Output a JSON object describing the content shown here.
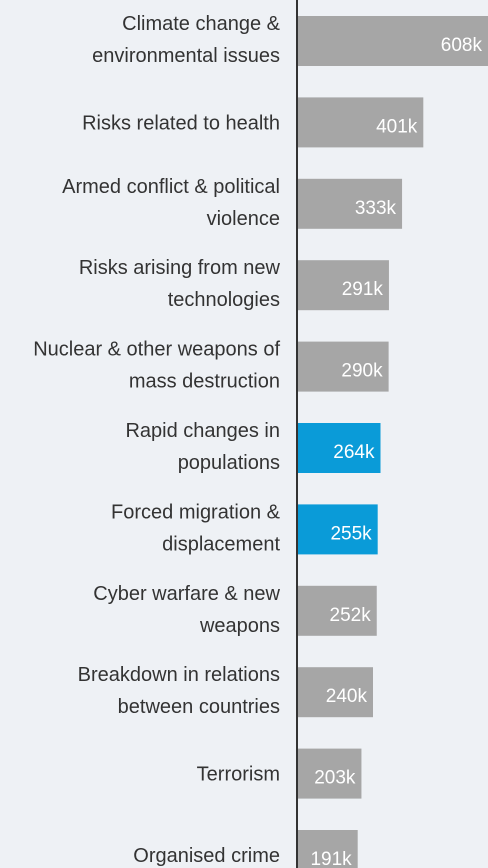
{
  "chart_data": {
    "type": "bar",
    "orientation": "horizontal",
    "categories": [
      "Climate change & environmental issues",
      "Risks related to health",
      "Armed conflict & political violence",
      "Risks arising from new technologies",
      "Nuclear & other weapons of mass destruction",
      "Rapid changes in populations",
      "Forced migration & displacement",
      "Cyber warfare & new weapons",
      "Breakdown in relations between countries",
      "Terrorism",
      "Organised crime"
    ],
    "values": [
      608,
      401,
      333,
      291,
      290,
      264,
      255,
      252,
      240,
      203,
      191
    ],
    "value_labels": [
      "608k",
      "401k",
      "333k",
      "291k",
      "290k",
      "264k",
      "255k",
      "252k",
      "240k",
      "203k",
      "191k"
    ],
    "colors": [
      "#a6a6a6",
      "#a6a6a6",
      "#a6a6a6",
      "#a6a6a6",
      "#a6a6a6",
      "#0a9bd8",
      "#0a9bd8",
      "#a6a6a6",
      "#a6a6a6",
      "#a6a6a6",
      "#a6a6a6"
    ]
  }
}
